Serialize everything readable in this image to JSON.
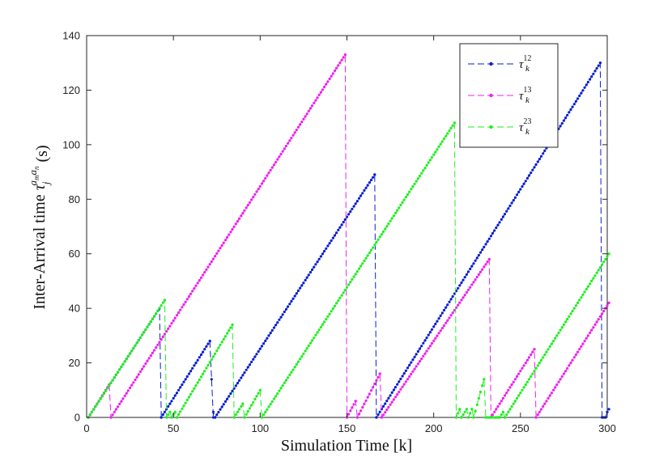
{
  "chart_data": {
    "type": "line",
    "title": "",
    "xlabel": "Simulation Time [k]",
    "ylabel_prefix": "Inter-Arrival time ",
    "ylabel_symbol": "τ",
    "ylabel_sub": "j",
    "ylabel_sup": "a",
    "ylabel_sup_sub1": "m",
    "ylabel_sup_mid": "a",
    "ylabel_sup_sub2": "n",
    "ylabel_unit": " (s)",
    "xlim": [
      0,
      300
    ],
    "ylim": [
      0,
      140
    ],
    "xticks": [
      0,
      50,
      100,
      150,
      200,
      250,
      300
    ],
    "yticks": [
      0,
      20,
      40,
      60,
      80,
      100,
      120,
      140
    ],
    "grid": false,
    "legend_position": "top-right",
    "series": [
      {
        "name": "τ",
        "sup": "12",
        "sub": "k",
        "color": "#0a1fd0",
        "x": [
          1,
          42,
          42,
          43,
          71,
          71,
          73,
          73,
          74,
          166,
          166,
          167,
          296,
          296,
          297,
          299,
          299,
          300,
          301
        ],
        "y": [
          0,
          40,
          40,
          0,
          28,
          28,
          0,
          2,
          0,
          89,
          89,
          0,
          130,
          130,
          0,
          0,
          0,
          2,
          3
        ]
      },
      {
        "name": "τ",
        "sup": "13",
        "sub": "k",
        "color": "#ee22ee",
        "x": [
          1,
          13,
          13,
          14,
          149,
          149,
          150,
          155,
          156,
          169,
          169,
          170,
          232,
          232,
          233,
          258,
          258,
          259,
          301
        ],
        "y": [
          0,
          12,
          12,
          0,
          133,
          133,
          0,
          6,
          0,
          16,
          16,
          0,
          58,
          58,
          0,
          25,
          25,
          0,
          42
        ]
      },
      {
        "name": "τ",
        "sup": "23",
        "sub": "k",
        "color": "#22ee22",
        "x": [
          1,
          45,
          45,
          46,
          48,
          49,
          51,
          52,
          84,
          84,
          85,
          90,
          91,
          100,
          101,
          212,
          212,
          213,
          215,
          216,
          219,
          220,
          222,
          223,
          229,
          230,
          237,
          238,
          240,
          241,
          301
        ],
        "y": [
          0,
          43,
          43,
          0,
          2,
          0,
          2,
          0,
          34,
          34,
          0,
          5,
          0,
          10,
          0,
          108,
          108,
          0,
          3,
          0,
          3,
          0,
          3,
          0,
          14,
          0,
          0,
          0,
          2,
          0,
          60
        ]
      }
    ]
  }
}
